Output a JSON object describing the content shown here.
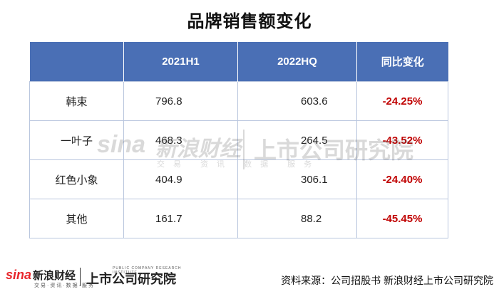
{
  "title": "品牌销售额变化",
  "table": {
    "headers": [
      "",
      "2021H1",
      "2022HQ",
      "同比变化"
    ],
    "rows": [
      {
        "brand": "韩束",
        "h2021": "796.8",
        "h2022": "603.6",
        "change": "-24.25%"
      },
      {
        "brand": "一叶子",
        "h2021": "468.3",
        "h2022": "264.5",
        "change": "-43.52%"
      },
      {
        "brand": "红色小象",
        "h2021": "404.9",
        "h2022": "306.1",
        "change": "-24.40%"
      },
      {
        "brand": "其他",
        "h2021": "161.7",
        "h2022": "88.2",
        "change": "-45.45%"
      }
    ]
  },
  "watermark": {
    "sina": "sina",
    "name": "新浪财经",
    "sub": "交易 资讯 数据 服务",
    "institute": "上市公司研究院"
  },
  "footer": {
    "sina": "sina",
    "name": "新浪财经",
    "sub": "交易·资讯·数据·服务",
    "institute": "上市公司研究院",
    "institute_en": "PUBLIC COMPANY RESEARCH INSTITUTE",
    "source": "资料来源：公司招股书  新浪财经上市公司研究院"
  },
  "colors": {
    "header_bg": "#4a6fb5",
    "negative": "#c00000",
    "border": "#b9c6de"
  }
}
